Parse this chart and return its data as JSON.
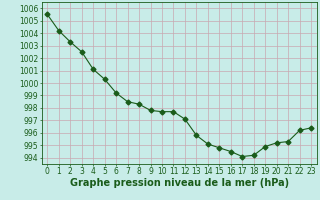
{
  "x": [
    0,
    1,
    2,
    3,
    4,
    5,
    6,
    7,
    8,
    9,
    10,
    11,
    12,
    13,
    14,
    15,
    16,
    17,
    18,
    19,
    20,
    21,
    22,
    23
  ],
  "y": [
    1005.5,
    1004.2,
    1003.3,
    1002.5,
    1001.1,
    1000.3,
    999.2,
    998.5,
    998.3,
    997.8,
    997.7,
    997.7,
    997.1,
    995.8,
    995.1,
    994.8,
    994.5,
    994.1,
    994.2,
    994.9,
    995.2,
    995.3,
    996.2,
    996.4
  ],
  "line_color": "#1a5c1a",
  "marker": "D",
  "marker_size": 2.5,
  "bg_color": "#c8ece8",
  "grid_color_h": "#c8a8b0",
  "grid_color_v": "#c8a8b0",
  "ylabel_values": [
    994,
    995,
    996,
    997,
    998,
    999,
    1000,
    1001,
    1002,
    1003,
    1004,
    1005,
    1006
  ],
  "ylim": [
    993.5,
    1006.5
  ],
  "xlim": [
    -0.5,
    23.5
  ],
  "xlabel": "Graphe pression niveau de la mer (hPa)",
  "xlabel_fontsize": 7.0,
  "tick_fontsize": 5.5,
  "linewidth": 0.8
}
